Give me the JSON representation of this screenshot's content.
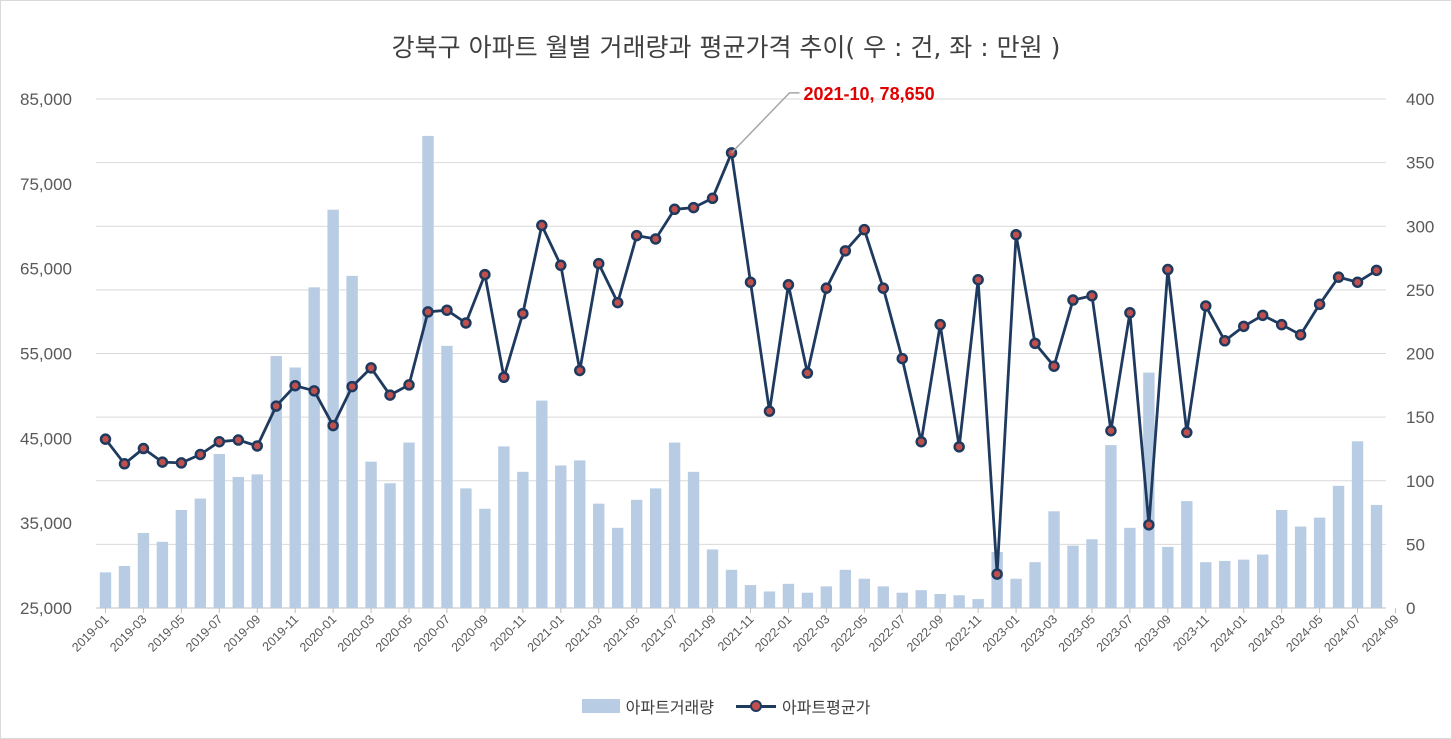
{
  "chart_data": {
    "type": "bar+line",
    "title": "강북구 아파트 월별 거래량과 평균가격 추이( 우 : 건, 좌 : 만원 )",
    "categories": [
      "2019-01",
      "2019-02",
      "2019-03",
      "2019-04",
      "2019-05",
      "2019-06",
      "2019-07",
      "2019-08",
      "2019-09",
      "2019-10",
      "2019-11",
      "2019-12",
      "2020-01",
      "2020-02",
      "2020-03",
      "2020-04",
      "2020-05",
      "2020-06",
      "2020-07",
      "2020-08",
      "2020-09",
      "2020-10",
      "2020-11",
      "2020-12",
      "2021-01",
      "2021-02",
      "2021-03",
      "2021-04",
      "2021-05",
      "2021-06",
      "2021-07",
      "2021-08",
      "2021-09",
      "2021-10",
      "2021-11",
      "2021-12",
      "2022-01",
      "2022-02",
      "2022-03",
      "2022-04",
      "2022-05",
      "2022-06",
      "2022-07",
      "2022-08",
      "2022-09",
      "2022-10",
      "2022-11",
      "2022-12",
      "2023-01",
      "2023-02",
      "2023-03",
      "2023-04",
      "2023-05",
      "2023-06",
      "2023-07",
      "2023-08",
      "2023-09",
      "2023-10",
      "2023-11",
      "2023-12",
      "2024-01",
      "2024-02",
      "2024-03",
      "2024-04",
      "2024-05",
      "2024-06",
      "2024-07",
      "2024-08"
    ],
    "x_tick_labels": [
      "2019-01",
      "2019-03",
      "2019-05",
      "2019-07",
      "2019-09",
      "2019-11",
      "2020-01",
      "2020-03",
      "2020-05",
      "2020-07",
      "2020-09",
      "2020-11",
      "2021-01",
      "2021-03",
      "2021-05",
      "2021-07",
      "2021-09",
      "2021-11",
      "2022-01",
      "2022-03",
      "2022-05",
      "2022-07",
      "2022-09",
      "2022-11",
      "2023-01",
      "2023-03",
      "2023-05",
      "2023-07",
      "2023-09",
      "2023-11",
      "2024-01",
      "2024-03",
      "2024-05",
      "2024-07",
      "2024-09"
    ],
    "series": [
      {
        "name": "아파트거래량",
        "type": "bar",
        "axis": "right",
        "color": "#b8cce4",
        "values": [
          28,
          33,
          59,
          52,
          77,
          86,
          121,
          103,
          105,
          198,
          189,
          252,
          313,
          261,
          115,
          98,
          130,
          371,
          206,
          94,
          78,
          127,
          107,
          163,
          112,
          116,
          82,
          63,
          85,
          94,
          130,
          107,
          46,
          30,
          18,
          13,
          19,
          12,
          17,
          30,
          23,
          17,
          12,
          14,
          11,
          10,
          7,
          44,
          23,
          36,
          76,
          49,
          54,
          128,
          63,
          185,
          48,
          84,
          36,
          37,
          38,
          42,
          77,
          64,
          71,
          96,
          131,
          81
        ]
      },
      {
        "name": "아파트평균가",
        "type": "line",
        "axis": "left",
        "color": "#1f3a5f",
        "marker_color": "#c0504d",
        "values": [
          44900,
          42000,
          43800,
          42200,
          42100,
          43100,
          44600,
          44800,
          44100,
          48800,
          51200,
          50600,
          46500,
          51100,
          53300,
          50100,
          51300,
          59900,
          60100,
          58600,
          64300,
          52200,
          59700,
          70100,
          65400,
          53000,
          65600,
          61000,
          68900,
          68500,
          72000,
          72200,
          73300,
          78650,
          63400,
          48200,
          63100,
          52700,
          62700,
          67100,
          69600,
          62700,
          54400,
          44600,
          58400,
          44000,
          63700,
          29000,
          69000,
          56200,
          53500,
          61300,
          61800,
          45900,
          59800,
          34800,
          64900,
          45700,
          60600,
          56500,
          58200,
          59500,
          58400,
          57200,
          60800,
          64000,
          63400,
          64800
        ]
      }
    ],
    "y_left": {
      "min": 25000,
      "max": 85000,
      "ticks": [
        "25,000",
        "35,000",
        "45,000",
        "55,000",
        "65,000",
        "75,000",
        "85,000"
      ],
      "tick_values": [
        25000,
        35000,
        45000,
        55000,
        65000,
        75000,
        85000
      ]
    },
    "y_right": {
      "min": 0,
      "max": 400,
      "ticks": [
        "0",
        "50",
        "100",
        "150",
        "200",
        "250",
        "300",
        "350",
        "400"
      ],
      "tick_values": [
        0,
        50,
        100,
        150,
        200,
        250,
        300,
        350,
        400
      ]
    },
    "annotation": {
      "label": "2021-10, 78,650",
      "category": "2021-10",
      "color": "#e00000"
    },
    "grid": true,
    "legend_position": "bottom"
  }
}
